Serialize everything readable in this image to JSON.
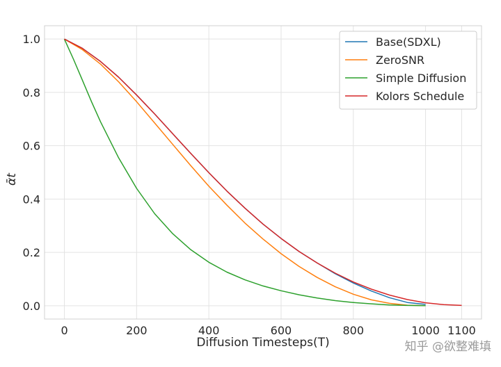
{
  "chart_data": {
    "type": "line",
    "xlabel": "Diffusion Timesteps(T)",
    "ylabel": "ᾱt",
    "x_ticks": [
      0,
      200,
      400,
      600,
      800,
      1000,
      1100
    ],
    "y_ticks": [
      0.0,
      0.2,
      0.4,
      0.6,
      0.8,
      1.0
    ],
    "x_tick_labels": [
      "0",
      "200",
      "400",
      "600",
      "800",
      "1000",
      "1100"
    ],
    "y_tick_labels": [
      "0.0",
      "0.2",
      "0.4",
      "0.6",
      "0.8",
      "1.0"
    ],
    "xlim": [
      -55,
      1155
    ],
    "ylim": [
      -0.05,
      1.05
    ],
    "grid": true,
    "legend_position": "top-right",
    "series": [
      {
        "name": "Base(SDXL)",
        "color": "#1f77b4",
        "x": [
          0,
          50,
          100,
          150,
          200,
          250,
          300,
          350,
          400,
          450,
          500,
          550,
          600,
          650,
          700,
          750,
          800,
          850,
          900,
          950,
          1000
        ],
        "y": [
          1.0,
          0.965,
          0.916,
          0.857,
          0.79,
          0.719,
          0.645,
          0.571,
          0.499,
          0.43,
          0.366,
          0.306,
          0.252,
          0.203,
          0.16,
          0.12,
          0.085,
          0.055,
          0.03,
          0.012,
          0.005
        ]
      },
      {
        "name": "ZeroSNR",
        "color": "#ff7f0e",
        "x": [
          0,
          50,
          100,
          150,
          200,
          250,
          300,
          350,
          400,
          450,
          500,
          550,
          600,
          650,
          700,
          750,
          800,
          850,
          900,
          950,
          1000
        ],
        "y": [
          1.0,
          0.96,
          0.906,
          0.84,
          0.765,
          0.685,
          0.605,
          0.525,
          0.448,
          0.377,
          0.31,
          0.25,
          0.195,
          0.147,
          0.106,
          0.071,
          0.043,
          0.022,
          0.009,
          0.002,
          0.0
        ]
      },
      {
        "name": "Simple Diffusion",
        "color": "#2ca02c",
        "x": [
          0,
          25,
          50,
          75,
          100,
          150,
          200,
          250,
          300,
          350,
          400,
          450,
          500,
          550,
          600,
          650,
          700,
          750,
          800,
          850,
          900,
          950,
          1000
        ],
        "y": [
          1.0,
          0.925,
          0.845,
          0.765,
          0.69,
          0.555,
          0.44,
          0.345,
          0.27,
          0.21,
          0.163,
          0.126,
          0.097,
          0.074,
          0.056,
          0.041,
          0.029,
          0.019,
          0.012,
          0.007,
          0.003,
          0.001,
          0.0
        ]
      },
      {
        "name": "Kolors Schedule",
        "color": "#d62728",
        "x": [
          0,
          50,
          100,
          150,
          200,
          250,
          300,
          350,
          400,
          450,
          500,
          550,
          600,
          650,
          700,
          750,
          800,
          850,
          900,
          950,
          1000,
          1050,
          1100
        ],
        "y": [
          1.0,
          0.965,
          0.916,
          0.857,
          0.79,
          0.719,
          0.645,
          0.571,
          0.499,
          0.43,
          0.366,
          0.306,
          0.252,
          0.203,
          0.16,
          0.122,
          0.089,
          0.062,
          0.04,
          0.023,
          0.011,
          0.004,
          0.001
        ]
      }
    ]
  },
  "watermark": "知乎 @欲整难填"
}
